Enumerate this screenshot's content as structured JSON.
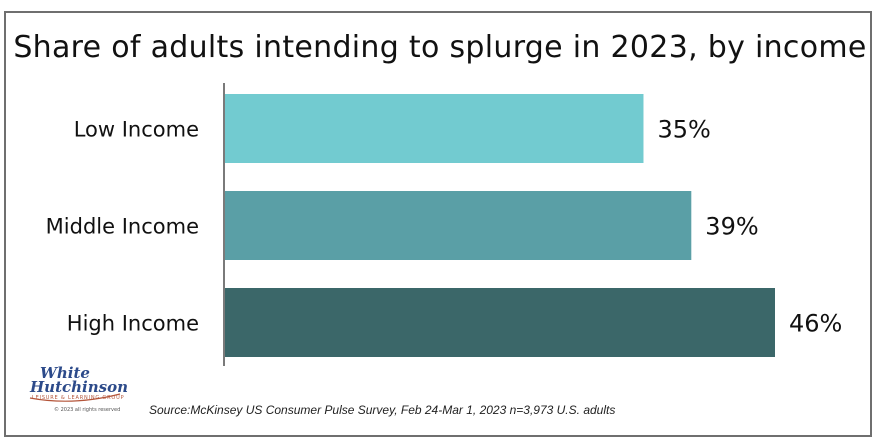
{
  "chart_data": {
    "type": "bar",
    "orientation": "horizontal",
    "title": "Share of adults intending to splurge in 2023, by income",
    "categories": [
      "Low Income",
      "Middle Income",
      "High Income"
    ],
    "values": [
      35,
      39,
      46
    ],
    "value_labels": [
      "35%",
      "39%",
      "46%"
    ],
    "colors": [
      "#72cbd0",
      "#5a9fa6",
      "#3b6769"
    ],
    "xlim": [
      0,
      50
    ],
    "grid": false,
    "legend": "none"
  },
  "source": "Source:McKinsey US Consumer Pulse Survey, Feb 24-Mar 1, 2023 n=3,973 U.S. adults",
  "logo": {
    "line1": "White",
    "line2": "Hutchinson",
    "tagline": "LEISURE & LEARNING GROUP",
    "copyright": "© 2023 all rights reserved"
  }
}
